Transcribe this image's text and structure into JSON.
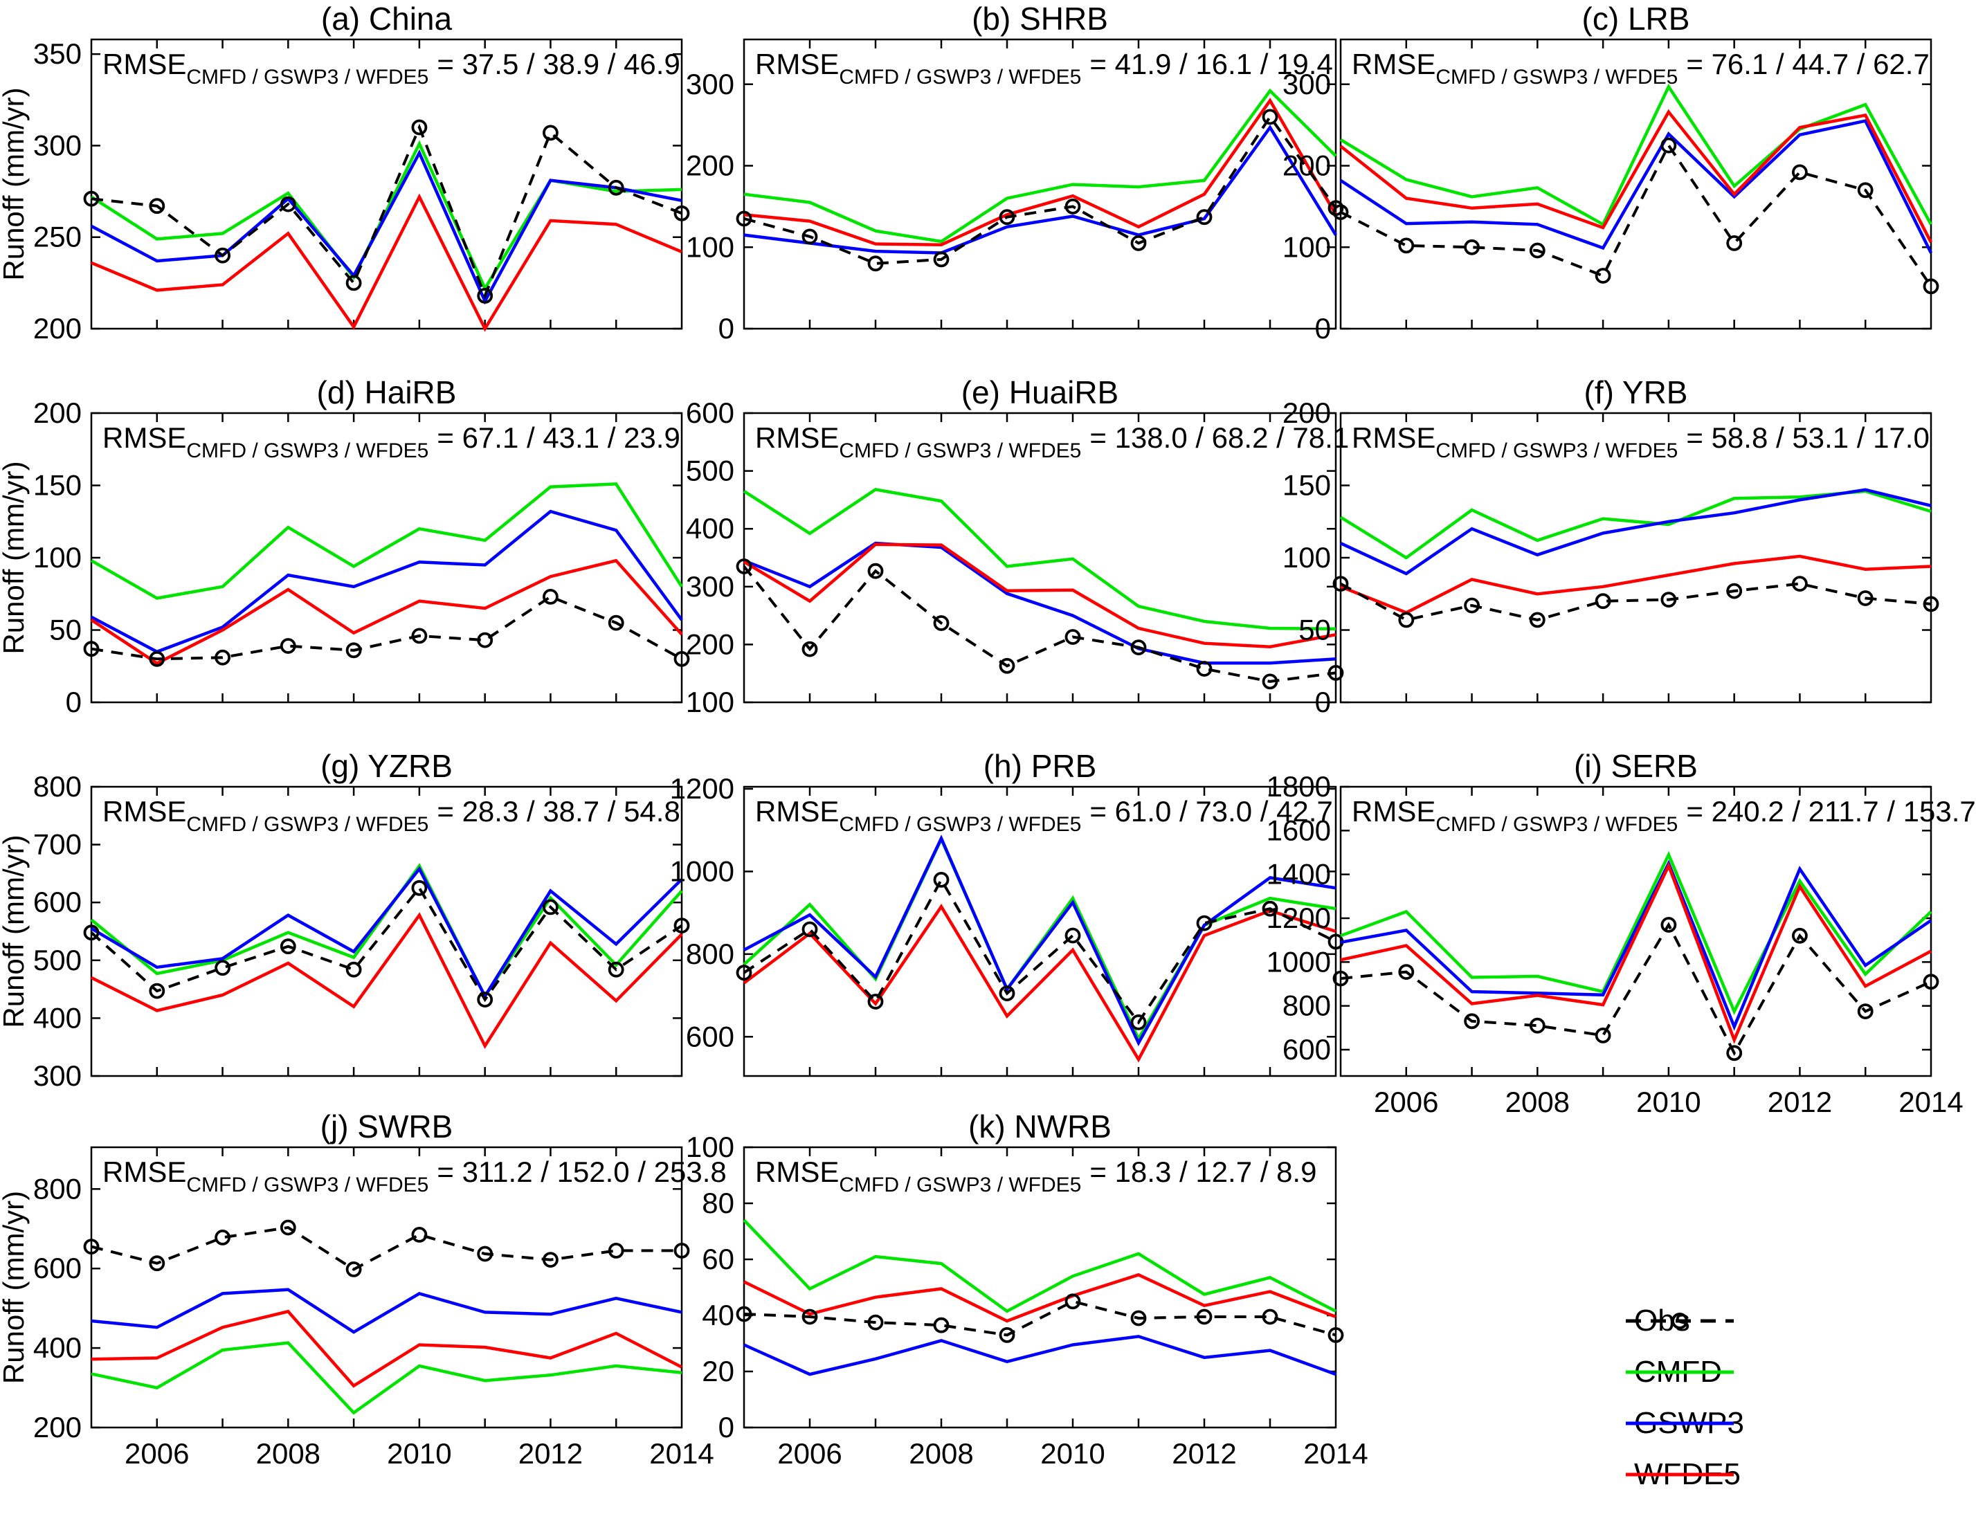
{
  "figure": {
    "ylabel": "Runoff (mm/yr)",
    "background": "#ffffff"
  },
  "colors": {
    "obs": "#000000",
    "cmfd": "#00e400",
    "gswp3": "#0000ff",
    "wfde5": "#ff0000"
  },
  "legend": {
    "items": [
      {
        "key": "obs",
        "label": "Obs"
      },
      {
        "key": "cmfd",
        "label": "CMFD"
      },
      {
        "key": "gswp3",
        "label": "GSWP3"
      },
      {
        "key": "wfde5",
        "label": "WFDE5"
      }
    ]
  },
  "x": {
    "years": [
      2005,
      2006,
      2007,
      2008,
      2009,
      2010,
      2011,
      2012,
      2013,
      2014
    ],
    "tick_years": [
      2006,
      2008,
      2010,
      2012,
      2014
    ],
    "tick_labels": [
      "2006",
      "2008",
      "2010",
      "2012",
      "2014"
    ],
    "minor_tick_years": [
      2006,
      2007,
      2008,
      2009,
      2010,
      2011,
      2012,
      2013
    ]
  },
  "chart_data": [
    {
      "id": "a",
      "type": "line",
      "title": "(a) China",
      "rmse": {
        "prefix": "RMSE",
        "sub": "CMFD / GSWP3 / WFDE5",
        "values": "= 37.5 / 38.9 / 46.9"
      },
      "ylim": [
        200,
        358
      ],
      "yticks": [
        200,
        250,
        300,
        350
      ],
      "show_ylabel": true,
      "show_xtick_labels": false,
      "series": [
        {
          "name": "CMFD",
          "key": "cmfd",
          "values": [
            272,
            249,
            252,
            274,
            228,
            301,
            222,
            281,
            275,
            276
          ]
        },
        {
          "name": "GSWP3",
          "key": "gswp3",
          "values": [
            256,
            237,
            240,
            271,
            229,
            296,
            215,
            281,
            277,
            270
          ]
        },
        {
          "name": "WFDE5",
          "key": "wfde5",
          "values": [
            236,
            221,
            224,
            252,
            201,
            272,
            200,
            259,
            257,
            242
          ]
        },
        {
          "name": "Obs",
          "key": "obs",
          "values": [
            271,
            267,
            240,
            268,
            225,
            310,
            218,
            307,
            277,
            263
          ]
        }
      ]
    },
    {
      "id": "b",
      "type": "line",
      "title": "(b) SHRB",
      "rmse": {
        "prefix": "RMSE",
        "sub": "CMFD / GSWP3 / WFDE5",
        "values": "= 41.9 / 16.1 / 19.4"
      },
      "ylim": [
        0,
        355
      ],
      "yticks": [
        0,
        100,
        200,
        300
      ],
      "show_ylabel": false,
      "show_xtick_labels": false,
      "series": [
        {
          "name": "CMFD",
          "key": "cmfd",
          "values": [
            165,
            155,
            120,
            107,
            160,
            177,
            174,
            182,
            292,
            212
          ]
        },
        {
          "name": "GSWP3",
          "key": "gswp3",
          "values": [
            115,
            105,
            95,
            93,
            125,
            138,
            115,
            135,
            247,
            115
          ]
        },
        {
          "name": "WFDE5",
          "key": "wfde5",
          "values": [
            140,
            132,
            104,
            103,
            140,
            163,
            125,
            165,
            280,
            140
          ]
        },
        {
          "name": "Obs",
          "key": "obs",
          "values": [
            135,
            113,
            80,
            85,
            137,
            150,
            105,
            137,
            260,
            148
          ]
        }
      ]
    },
    {
      "id": "c",
      "type": "line",
      "title": "(c) LRB",
      "rmse": {
        "prefix": "RMSE",
        "sub": "CMFD / GSWP3 / WFDE5",
        "values": "= 76.1 / 44.7 / 62.7"
      },
      "ylim": [
        0,
        355
      ],
      "yticks": [
        0,
        100,
        200,
        300
      ],
      "show_ylabel": false,
      "show_xtick_labels": false,
      "series": [
        {
          "name": "CMFD",
          "key": "cmfd",
          "values": [
            232,
            183,
            162,
            173,
            128,
            297,
            175,
            245,
            275,
            128
          ]
        },
        {
          "name": "GSWP3",
          "key": "gswp3",
          "values": [
            182,
            129,
            131,
            128,
            99,
            239,
            162,
            238,
            255,
            93
          ]
        },
        {
          "name": "WFDE5",
          "key": "wfde5",
          "values": [
            224,
            160,
            148,
            153,
            124,
            266,
            165,
            247,
            262,
            106
          ]
        },
        {
          "name": "Obs",
          "key": "obs",
          "values": [
            143,
            102,
            100,
            96,
            65,
            225,
            105,
            192,
            170,
            52
          ]
        }
      ]
    },
    {
      "id": "d",
      "type": "line",
      "title": "(d) HaiRB",
      "rmse": {
        "prefix": "RMSE",
        "sub": "CMFD / GSWP3 / WFDE5",
        "values": "= 67.1 / 43.1 / 23.9"
      },
      "ylim": [
        0,
        200
      ],
      "yticks": [
        0,
        50,
        100,
        150,
        200
      ],
      "show_ylabel": true,
      "show_xtick_labels": false,
      "series": [
        {
          "name": "CMFD",
          "key": "cmfd",
          "values": [
            98,
            72,
            80,
            121,
            94,
            120,
            112,
            149,
            151,
            80
          ]
        },
        {
          "name": "GSWP3",
          "key": "gswp3",
          "values": [
            59,
            35,
            52,
            88,
            80,
            97,
            95,
            132,
            119,
            57
          ]
        },
        {
          "name": "WFDE5",
          "key": "wfde5",
          "values": [
            57,
            27,
            50,
            78,
            48,
            70,
            65,
            87,
            98,
            47
          ]
        },
        {
          "name": "Obs",
          "key": "obs",
          "values": [
            37,
            30,
            31,
            39,
            36,
            46,
            43,
            73,
            55,
            30
          ]
        }
      ]
    },
    {
      "id": "e",
      "type": "line",
      "title": "(e) HuaiRB",
      "rmse": {
        "prefix": "RMSE",
        "sub": "CMFD / GSWP3 / WFDE5",
        "values": "= 138.0 / 68.2 / 78.1"
      },
      "ylim": [
        100,
        600
      ],
      "yticks": [
        100,
        200,
        300,
        400,
        500,
        600
      ],
      "show_ylabel": false,
      "show_xtick_labels": false,
      "series": [
        {
          "name": "CMFD",
          "key": "cmfd",
          "values": [
            465,
            392,
            468,
            448,
            335,
            348,
            266,
            240,
            228,
            227
          ]
        },
        {
          "name": "GSWP3",
          "key": "gswp3",
          "values": [
            345,
            300,
            375,
            368,
            288,
            250,
            193,
            168,
            168,
            175
          ]
        },
        {
          "name": "WFDE5",
          "key": "wfde5",
          "values": [
            343,
            275,
            373,
            372,
            293,
            294,
            228,
            202,
            196,
            217
          ]
        },
        {
          "name": "Obs",
          "key": "obs",
          "values": [
            335,
            192,
            327,
            237,
            163,
            213,
            195,
            158,
            136,
            151
          ]
        }
      ]
    },
    {
      "id": "f",
      "type": "line",
      "title": "(f) YRB",
      "rmse": {
        "prefix": "RMSE",
        "sub": "CMFD / GSWP3 / WFDE5",
        "values": "= 58.8 / 53.1 / 17.0"
      },
      "ylim": [
        0,
        200
      ],
      "yticks": [
        0,
        50,
        100,
        150,
        200
      ],
      "show_ylabel": false,
      "show_xtick_labels": false,
      "series": [
        {
          "name": "CMFD",
          "key": "cmfd",
          "values": [
            128,
            100,
            133,
            112,
            127,
            123,
            141,
            142,
            146,
            132
          ]
        },
        {
          "name": "GSWP3",
          "key": "gswp3",
          "values": [
            110,
            89,
            120,
            102,
            117,
            125,
            131,
            140,
            147,
            136
          ]
        },
        {
          "name": "WFDE5",
          "key": "wfde5",
          "values": [
            80,
            62,
            85,
            75,
            80,
            88,
            96,
            101,
            92,
            94
          ]
        },
        {
          "name": "Obs",
          "key": "obs",
          "values": [
            82,
            57,
            67,
            57,
            70,
            71,
            77,
            82,
            72,
            68
          ]
        }
      ]
    },
    {
      "id": "g",
      "type": "line",
      "title": "(g) YZRB",
      "rmse": {
        "prefix": "RMSE",
        "sub": "CMFD / GSWP3 / WFDE5",
        "values": "= 28.3 / 38.7 / 54.8"
      },
      "ylim": [
        300,
        800
      ],
      "yticks": [
        300,
        400,
        500,
        600,
        700,
        800
      ],
      "show_ylabel": true,
      "show_xtick_labels": false,
      "series": [
        {
          "name": "CMFD",
          "key": "cmfd",
          "values": [
            570,
            477,
            500,
            548,
            505,
            663,
            438,
            608,
            492,
            620
          ]
        },
        {
          "name": "GSWP3",
          "key": "gswp3",
          "values": [
            555,
            488,
            503,
            578,
            515,
            658,
            438,
            620,
            528,
            640
          ]
        },
        {
          "name": "WFDE5",
          "key": "wfde5",
          "values": [
            470,
            413,
            440,
            495,
            420,
            578,
            352,
            530,
            430,
            545
          ]
        },
        {
          "name": "Obs",
          "key": "obs",
          "values": [
            548,
            447,
            487,
            524,
            484,
            625,
            432,
            592,
            484,
            560
          ]
        }
      ]
    },
    {
      "id": "h",
      "type": "line",
      "title": "(h) PRB",
      "rmse": {
        "prefix": "RMSE",
        "sub": "CMFD / GSWP3 / WFDE5",
        "values": "= 61.0 / 73.0 / 42.7"
      },
      "ylim": [
        505,
        1205
      ],
      "yticks": [
        600,
        800,
        1000,
        1200
      ],
      "show_ylabel": false,
      "show_xtick_labels": false,
      "series": [
        {
          "name": "CMFD",
          "key": "cmfd",
          "values": [
            775,
            920,
            740,
            1078,
            715,
            935,
            595,
            870,
            935,
            910
          ]
        },
        {
          "name": "GSWP3",
          "key": "gswp3",
          "values": [
            810,
            895,
            745,
            1080,
            715,
            925,
            585,
            870,
            985,
            960
          ]
        },
        {
          "name": "WFDE5",
          "key": "wfde5",
          "values": [
            730,
            850,
            680,
            915,
            650,
            810,
            545,
            845,
            905,
            855
          ]
        },
        {
          "name": "Obs",
          "key": "obs",
          "values": [
            755,
            860,
            685,
            980,
            705,
            845,
            635,
            875,
            910,
            830
          ]
        }
      ]
    },
    {
      "id": "i",
      "type": "line",
      "title": "(i) SERB",
      "rmse": {
        "prefix": "RMSE",
        "sub": "CMFD / GSWP3 / WFDE5",
        "values": "= 240.2 / 211.7 / 153.7"
      },
      "ylim": [
        480,
        1800
      ],
      "yticks": [
        600,
        800,
        1000,
        1200,
        1400,
        1600,
        1800
      ],
      "show_ylabel": false,
      "show_xtick_labels": true,
      "series": [
        {
          "name": "CMFD",
          "key": "cmfd",
          "values": [
            1120,
            1230,
            930,
            935,
            865,
            1490,
            775,
            1370,
            945,
            1230
          ]
        },
        {
          "name": "GSWP3",
          "key": "gswp3",
          "values": [
            1090,
            1145,
            865,
            858,
            850,
            1450,
            705,
            1425,
            985,
            1190
          ]
        },
        {
          "name": "WFDE5",
          "key": "wfde5",
          "values": [
            1010,
            1075,
            810,
            848,
            805,
            1440,
            645,
            1345,
            890,
            1050
          ]
        },
        {
          "name": "Obs",
          "key": "obs",
          "values": [
            925,
            955,
            730,
            710,
            665,
            1170,
            585,
            1120,
            775,
            910
          ]
        }
      ]
    },
    {
      "id": "j",
      "type": "line",
      "title": "(j) SWRB",
      "rmse": {
        "prefix": "RMSE",
        "sub": "CMFD / GSWP3 / WFDE5",
        "values": "= 311.2 / 152.0 / 253.8"
      },
      "ylim": [
        200,
        905
      ],
      "yticks": [
        200,
        400,
        600,
        800
      ],
      "show_ylabel": true,
      "show_xtick_labels": true,
      "series": [
        {
          "name": "CMFD",
          "key": "cmfd",
          "values": [
            335,
            300,
            395,
            413,
            237,
            355,
            318,
            332,
            355,
            338
          ]
        },
        {
          "name": "GSWP3",
          "key": "gswp3",
          "values": [
            468,
            452,
            537,
            547,
            440,
            537,
            490,
            485,
            525,
            490
          ]
        },
        {
          "name": "WFDE5",
          "key": "wfde5",
          "values": [
            372,
            375,
            452,
            492,
            305,
            408,
            402,
            375,
            437,
            352
          ]
        },
        {
          "name": "Obs",
          "key": "obs",
          "values": [
            655,
            613,
            678,
            703,
            598,
            685,
            637,
            622,
            645,
            645
          ]
        }
      ]
    },
    {
      "id": "k",
      "type": "line",
      "title": "(k) NWRB",
      "rmse": {
        "prefix": "RMSE",
        "sub": "CMFD / GSWP3 / WFDE5",
        "values": "= 18.3 / 12.7 / 8.9"
      },
      "ylim": [
        0,
        100
      ],
      "yticks": [
        0,
        20,
        40,
        60,
        80,
        100
      ],
      "show_ylabel": false,
      "show_xtick_labels": true,
      "series": [
        {
          "name": "CMFD",
          "key": "cmfd",
          "values": [
            74,
            49.5,
            61,
            58.5,
            41.5,
            54,
            62,
            47.5,
            53.5,
            41.5
          ]
        },
        {
          "name": "GSWP3",
          "key": "gswp3",
          "values": [
            29.5,
            19,
            24.5,
            31,
            23.5,
            29.5,
            32.5,
            25,
            27.5,
            19
          ]
        },
        {
          "name": "WFDE5",
          "key": "wfde5",
          "values": [
            52,
            40.5,
            46.5,
            49.5,
            38,
            47,
            54.5,
            43.5,
            48.5,
            39.5
          ]
        },
        {
          "name": "Obs",
          "key": "obs",
          "values": [
            40.5,
            39.5,
            37.5,
            36.5,
            33,
            45,
            39,
            39.5,
            39.5,
            33
          ]
        }
      ]
    }
  ]
}
